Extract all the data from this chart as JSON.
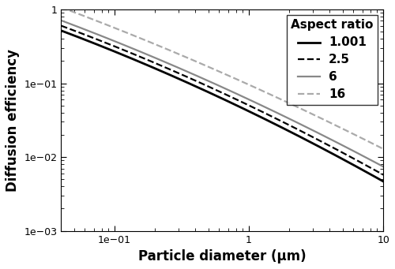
{
  "xlabel": "Particle diameter (μm)",
  "ylabel": "Diffusion efficiency",
  "xlim": [
    0.04,
    10
  ],
  "ylim": [
    0.001,
    1.0
  ],
  "legend_title": "Aspect ratio",
  "series": [
    {
      "label": "1.001",
      "color": "#000000",
      "linestyle": "solid",
      "linewidth": 2.0,
      "a": -1.38,
      "b": -0.88,
      "c": -0.07
    },
    {
      "label": "2.5",
      "color": "#000000",
      "linestyle": "dashed",
      "linewidth": 1.6,
      "a": -1.3,
      "b": -0.87,
      "c": -0.07
    },
    {
      "label": "6",
      "color": "#888888",
      "linestyle": "solid",
      "linewidth": 1.6,
      "a": -1.22,
      "b": -0.85,
      "c": -0.06
    },
    {
      "label": "16",
      "color": "#aaaaaa",
      "linestyle": "dashed",
      "linewidth": 1.6,
      "a": -1.02,
      "b": -0.82,
      "c": -0.05
    }
  ],
  "background_color": "#ffffff",
  "legend_fontsize": 10,
  "axis_fontsize": 12,
  "tick_fontsize": 9
}
